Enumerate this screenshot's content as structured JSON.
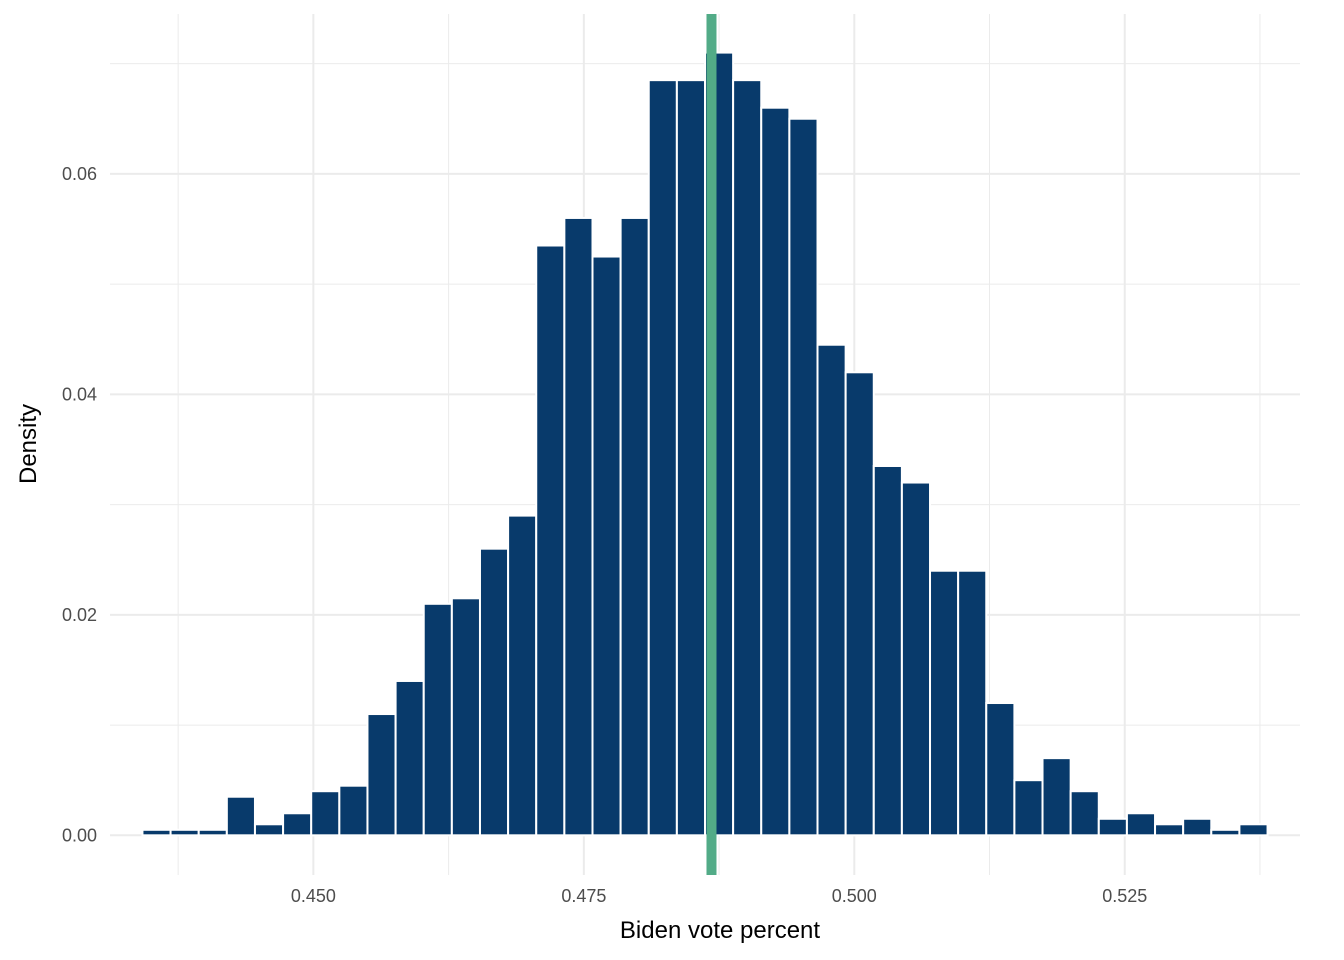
{
  "chart_data": {
    "type": "bar",
    "xlabel": "Biden vote percent",
    "ylabel": "Density",
    "title": "",
    "bin_width": 0.0026,
    "bins_x": [
      0.4355,
      0.4381,
      0.4407,
      0.4433,
      0.4459,
      0.4485,
      0.4511,
      0.4537,
      0.4563,
      0.4589,
      0.4615,
      0.4641,
      0.4667,
      0.4693,
      0.4719,
      0.4745,
      0.4771,
      0.4797,
      0.4823,
      0.4849,
      0.4875,
      0.4901,
      0.4927,
      0.4953,
      0.4979,
      0.5005,
      0.5031,
      0.5057,
      0.5083,
      0.5109,
      0.5135,
      0.5161,
      0.5187,
      0.5213,
      0.5239,
      0.5265,
      0.5291,
      0.5317,
      0.5343,
      0.5369
    ],
    "values": [
      0.0005,
      0.0005,
      0.0005,
      0.0035,
      0.001,
      0.002,
      0.004,
      0.0045,
      0.011,
      0.014,
      0.021,
      0.0215,
      0.026,
      0.029,
      0.0535,
      0.056,
      0.0525,
      0.056,
      0.0685,
      0.0685,
      0.071,
      0.0685,
      0.066,
      0.065,
      0.0445,
      0.042,
      0.0335,
      0.032,
      0.024,
      0.024,
      0.012,
      0.005,
      0.007,
      0.004,
      0.0015,
      0.002,
      0.001,
      0.0015,
      0.0005,
      0.001
    ],
    "vline": {
      "x": 0.4868,
      "color": "#52ab87"
    },
    "bar_color": "#083a6b",
    "xlim": [
      0.4312,
      0.5412
    ],
    "ylim": [
      -0.0036,
      0.0745
    ],
    "x_ticks": [
      0.45,
      0.475,
      0.5,
      0.525
    ],
    "x_tick_labels": [
      "0.450",
      "0.475",
      "0.500",
      "0.525"
    ],
    "y_ticks": [
      0.0,
      0.02,
      0.04,
      0.06
    ],
    "y_tick_labels": [
      "0.00",
      "0.02",
      "0.04",
      "0.06"
    ],
    "grid": true
  }
}
